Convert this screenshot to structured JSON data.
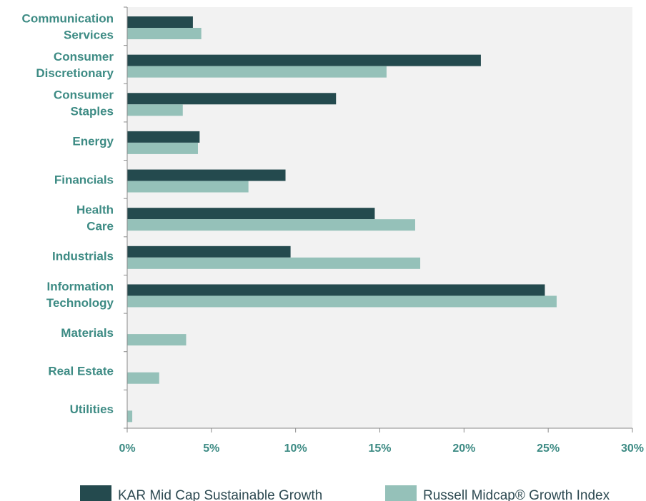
{
  "chart_data": {
    "type": "bar",
    "orientation": "horizontal",
    "categories": [
      [
        "Communication",
        "Services"
      ],
      [
        "Consumer",
        "Discretionary"
      ],
      [
        "Consumer",
        "Staples"
      ],
      [
        "Energy"
      ],
      [
        "Financials"
      ],
      [
        "Health",
        "Care"
      ],
      [
        "Industrials"
      ],
      [
        "Information",
        "Technology"
      ],
      [
        "Materials"
      ],
      [
        "Real Estate"
      ],
      [
        "Utilities"
      ]
    ],
    "series": [
      {
        "name": "KAR Mid Cap Sustainable Growth",
        "color": "#244a4e",
        "values": [
          3.9,
          21.0,
          12.4,
          4.3,
          9.4,
          14.7,
          9.7,
          24.8,
          0,
          0,
          0
        ]
      },
      {
        "name": "Russell Midcap® Growth Index",
        "color": "#95c1b9",
        "values": [
          4.4,
          15.4,
          3.3,
          4.2,
          7.2,
          17.1,
          17.4,
          25.5,
          3.5,
          1.9,
          0.3
        ]
      }
    ],
    "x_ticks": [
      "0%",
      "5%",
      "10%",
      "15%",
      "20%",
      "25%",
      "30%"
    ],
    "xlim": [
      0,
      30
    ],
    "legend_position": "bottom",
    "grid": false,
    "plot_background": "#f2f2f2",
    "label_color": "#3d8b84"
  }
}
